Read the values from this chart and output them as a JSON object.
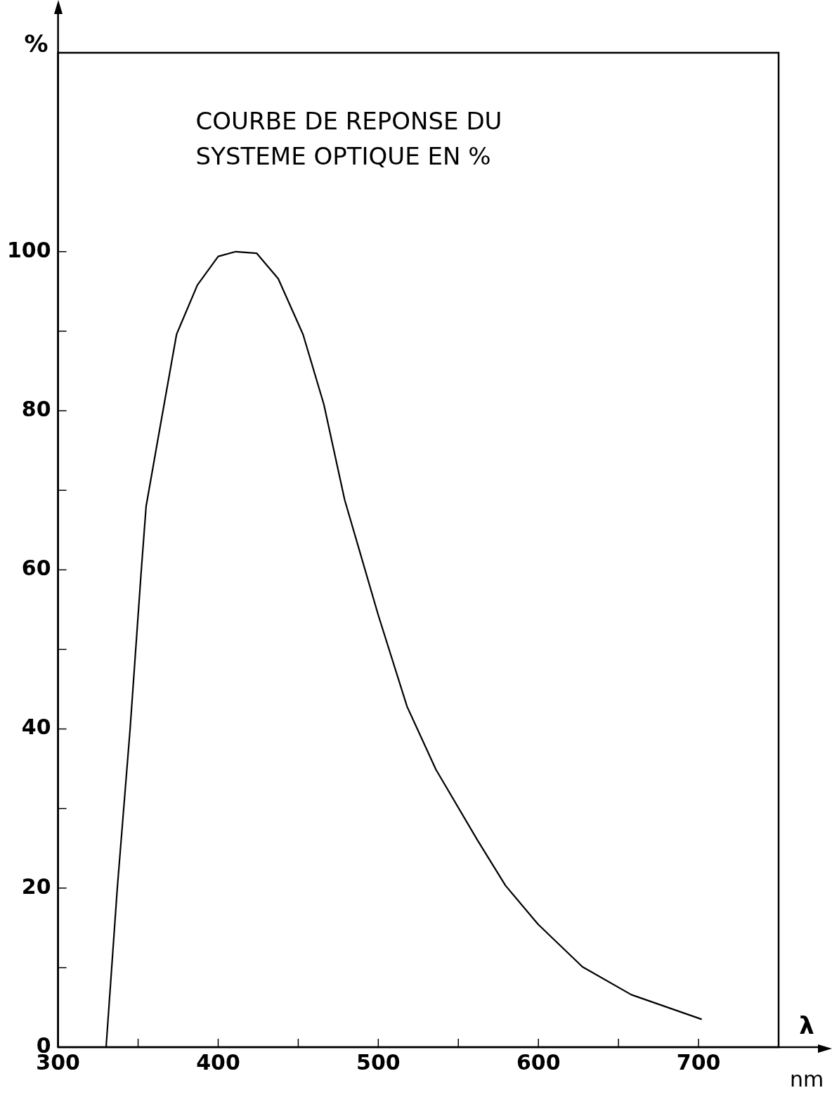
{
  "chart_data": {
    "type": "line",
    "title": "COURBE DE REPONSE DU\nSYSTEME OPTIQUE EN %",
    "xlabel": "λ",
    "ylabel": "%",
    "annotations": [
      "nm"
    ],
    "x": [
      330,
      337,
      345,
      352,
      355,
      362,
      374,
      387,
      400,
      411,
      424,
      437.5,
      453,
      466,
      479,
      500,
      518,
      536,
      562,
      579.5,
      600,
      627.5,
      658,
      702
    ],
    "series": [
      {
        "color": "#000000",
        "values": [
          0,
          20,
          40,
          60,
          68,
          76,
          89.6,
          95.8,
          99.4,
          100,
          99.8,
          96.6,
          89.6,
          80.8,
          68.8,
          54.3,
          42.8,
          34.9,
          26,
          20.3,
          15.4,
          10.1,
          6.6,
          3.5
        ]
      }
    ],
    "xlim": [
      300,
      750
    ],
    "xticks": [
      300,
      {
        "value": 350,
        "label": null
      },
      400,
      {
        "value": 450,
        "label": null
      },
      500,
      {
        "value": 550,
        "label": null
      },
      600,
      {
        "value": 650,
        "label": null
      },
      700
    ],
    "ylim": [
      0,
      125
    ],
    "yticks": [
      0,
      {
        "value": 10,
        "label": null
      },
      20,
      {
        "value": 30,
        "label": null
      },
      40,
      {
        "value": 50,
        "label": null
      },
      60,
      {
        "value": 70,
        "label": null
      },
      80,
      {
        "value": 90,
        "label": null
      },
      100
    ],
    "grid": false,
    "legend": false,
    "marker": "none",
    "line_style": "solid"
  }
}
